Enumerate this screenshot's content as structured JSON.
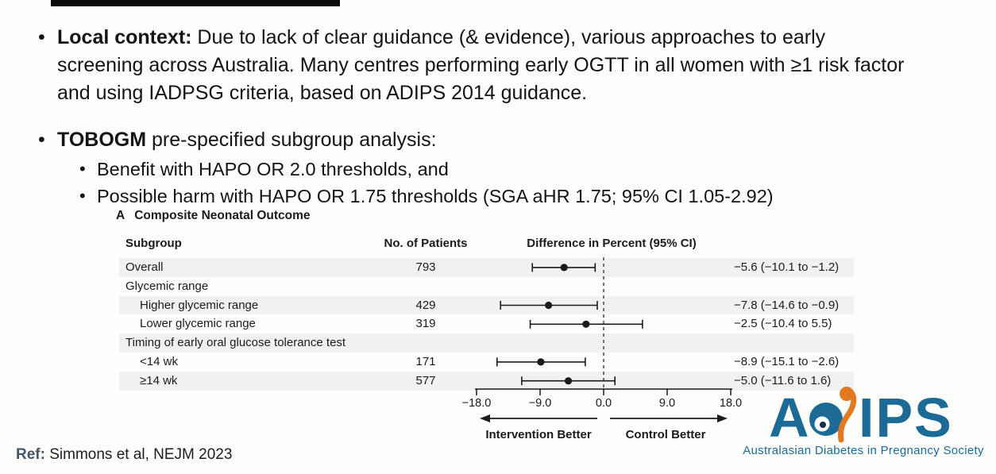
{
  "slide": {
    "bullet_glyph": "•",
    "bullet1_bold": "Local context:",
    "bullet1_rest": " Due to lack of clear guidance (& evidence), various approaches to early screening across Australia. Many centres performing early OGTT in all women with ≥1 risk factor and using IADPSG criteria, based on ADIPS 2014 guidance.",
    "bullet2_bold": "TOBOGM",
    "bullet2_rest": " pre-specified subgroup analysis:",
    "sub_bullet1": "Benefit with HAPO OR 2.0 thresholds, and",
    "sub_bullet2": "Possible harm with HAPO OR 1.75 thresholds (SGA aHR 1.75; 95% CI 1.05-2.92)"
  },
  "chart_data": {
    "type": "forest",
    "panel_label": "A",
    "title": "Composite Neonatal Outcome",
    "columns": [
      "Subgroup",
      "No. of Patients",
      "Difference in Percent (95% CI)"
    ],
    "xlim": [
      -18,
      18
    ],
    "x_ticks": [
      -18,
      -9,
      0,
      9,
      18
    ],
    "x_tick_labels": [
      "−18.0",
      "−9.0",
      "0.0",
      "9.0",
      "18.0"
    ],
    "zero_line": 0,
    "xlabel_left": "Intervention Better",
    "xlabel_right": "Control Better",
    "colors": {
      "ink": "#1B1B1B",
      "band": "#F1F1EF",
      "dash": "#3a3a3a"
    },
    "rows": [
      {
        "label": "Overall",
        "indent": 0,
        "n": "793",
        "est": -5.6,
        "lo": -10.1,
        "hi": -1.2,
        "ci_text": "−5.6 (−10.1 to −1.2)",
        "shaded": true
      },
      {
        "label": "Glycemic range",
        "indent": 0,
        "n": "",
        "est": null,
        "lo": null,
        "hi": null,
        "ci_text": "",
        "shaded": false
      },
      {
        "label": "Higher glycemic range",
        "indent": 1,
        "n": "429",
        "est": -7.8,
        "lo": -14.6,
        "hi": -0.9,
        "ci_text": "−7.8 (−14.6 to −0.9)",
        "shaded": true
      },
      {
        "label": "Lower glycemic range",
        "indent": 1,
        "n": "319",
        "est": -2.5,
        "lo": -10.4,
        "hi": 5.5,
        "ci_text": "−2.5 (−10.4 to 5.5)",
        "shaded": false
      },
      {
        "label": "Timing of early oral glucose tolerance test",
        "indent": 0,
        "n": "",
        "est": null,
        "lo": null,
        "hi": null,
        "ci_text": "",
        "shaded": true
      },
      {
        "label": "<14 wk",
        "indent": 1,
        "n": "171",
        "est": -8.9,
        "lo": -15.1,
        "hi": -2.6,
        "ci_text": "−8.9 (−15.1 to −2.6)",
        "shaded": false
      },
      {
        "label": "≥14 wk",
        "indent": 1,
        "n": "577",
        "est": -5.0,
        "lo": -11.6,
        "hi": 1.6,
        "ci_text": "−5.0 (−11.6 to 1.6)",
        "shaded": true
      }
    ]
  },
  "footer": {
    "ref_label": "Ref:",
    "ref_text": " Simmons et al, NEJM 2023",
    "ref_label_color": "#44546A",
    "ref_text_color": "#1d1d1d"
  },
  "logo": {
    "letter_a": "A",
    "letters_ips": "IPS",
    "tagline": "Australasian Diabetes in Pregnancy Society",
    "teal": "#1C6B96",
    "orange": "#E2791E",
    "navy": "#173042"
  }
}
